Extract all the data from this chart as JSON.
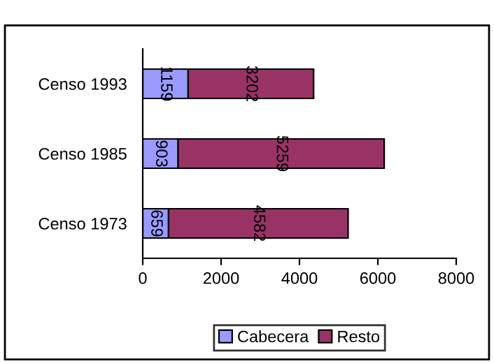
{
  "chart_data": {
    "type": "bar",
    "orientation": "horizontal",
    "stacked": true,
    "data_labels": true,
    "categories": [
      "Censo 1993",
      "Censo 1985",
      "Censo 1973"
    ],
    "series": [
      {
        "name": "Cabecera",
        "color": "#9999ff",
        "values": [
          1159,
          903,
          659
        ]
      },
      {
        "name": "Resto",
        "color": "#993366",
        "values": [
          3202,
          5259,
          4582
        ]
      }
    ],
    "xlim": [
      0,
      8000
    ],
    "xticks": [
      0,
      2000,
      4000,
      6000,
      8000
    ],
    "grid": false,
    "legend": "bottom"
  }
}
